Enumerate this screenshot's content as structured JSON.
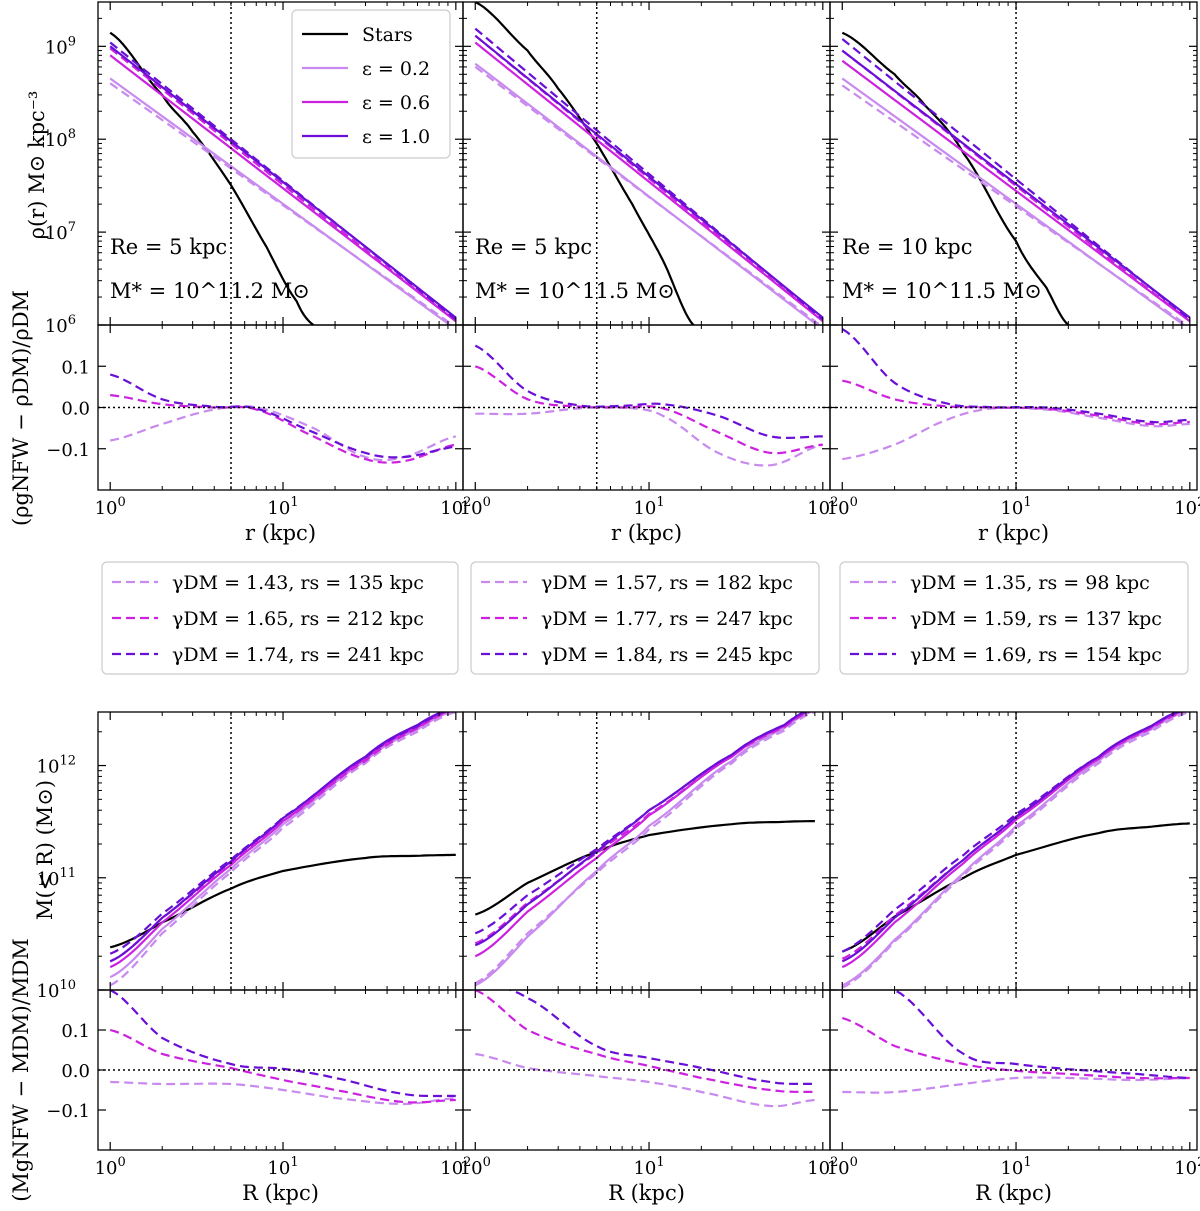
{
  "colors": {
    "stars": "#000000",
    "eps_0_2": "#c88aee",
    "eps_0_6": "#cc22e0",
    "eps_1_0": "#6a0fd6"
  },
  "axis_labels": {
    "density_y": "ρ(r) M⊙ kpc⁻³",
    "density_ratio_y": "(ρgNFW − ρDM)/ρDM",
    "density_x": "r (kpc)",
    "mass_y": "M(< R) (M⊙)",
    "mass_ratio_y": "(MgNFW − MDM)/MDM",
    "mass_x": "R (kpc)"
  },
  "main_legend": [
    {
      "label": "Stars",
      "color_key": "stars"
    },
    {
      "label": "ε = 0.2",
      "color_key": "eps_0_2"
    },
    {
      "label": "ε = 0.6",
      "color_key": "eps_0_6"
    },
    {
      "label": "ε = 1.0",
      "color_key": "eps_1_0"
    }
  ],
  "panels": [
    {
      "re_label": "Re = 5 kpc",
      "mstar_label": "M* = 10^11.2 M⊙",
      "fit_legend": [
        {
          "label": "γDM = 1.43, rs = 135 kpc",
          "color_key": "eps_0_2"
        },
        {
          "label": "γDM = 1.65, rs = 212 kpc",
          "color_key": "eps_0_6"
        },
        {
          "label": "γDM = 1.74, rs = 241 kpc",
          "color_key": "eps_1_0"
        }
      ]
    },
    {
      "re_label": "Re = 5 kpc",
      "mstar_label": "M* = 10^11.5 M⊙",
      "fit_legend": [
        {
          "label": "γDM = 1.57, rs = 182 kpc",
          "color_key": "eps_0_2"
        },
        {
          "label": "γDM = 1.77, rs = 247 kpc",
          "color_key": "eps_0_6"
        },
        {
          "label": "γDM = 1.84, rs = 245 kpc",
          "color_key": "eps_1_0"
        }
      ]
    },
    {
      "re_label": "Re = 10 kpc",
      "mstar_label": "M* = 10^11.5 M⊙",
      "fit_legend": [
        {
          "label": "γDM = 1.35, rs = 98 kpc",
          "color_key": "eps_0_2"
        },
        {
          "label": "γDM = 1.59, rs = 137 kpc",
          "color_key": "eps_0_6"
        },
        {
          "label": "γDM = 1.69, rs = 154 kpc",
          "color_key": "eps_1_0"
        }
      ]
    }
  ],
  "chart_data": [
    {
      "type": "line",
      "name": "density",
      "xscale": "log",
      "yscale": "log",
      "xlim": [
        0.85,
        110
      ],
      "ylim": [
        1000000,
        3000000000
      ],
      "x_ticks": [
        "10^0",
        "10^1",
        "10^2"
      ],
      "y_ticks": [
        "10^6",
        "10^7",
        "10^8",
        "10^9"
      ],
      "vline_x": [
        5,
        5,
        10
      ],
      "panels": [
        {
          "x": [
            1,
            100
          ],
          "stars": {
            "x": [
              1,
              2,
              3,
              5,
              8,
              12,
              15
            ],
            "y": [
              1400000000,
              300000000,
              120000000,
              32000000,
              7000000,
              1800000,
              1000000
            ]
          },
          "solid": {
            "eps_0_2": [
              450000000,
              900000
            ],
            "eps_0_6": [
              800000000,
              1100000
            ],
            "eps_1_0": [
              1000000000,
              1200000
            ]
          },
          "dashed": {
            "eps_0_2": [
              400000000,
              950000
            ],
            "eps_0_6": [
              950000000,
              1100000
            ],
            "eps_1_0": [
              1100000000,
              1150000
            ]
          }
        },
        {
          "x": [
            1,
            100
          ],
          "stars": {
            "x": [
              1,
              2,
              3,
              5,
              8,
              12,
              18
            ],
            "y": [
              3000000000,
              900000000,
              350000000,
              90000000,
              20000000,
              5000000,
              1000000
            ]
          },
          "solid": {
            "eps_0_2": [
              650000000,
              900000
            ],
            "eps_0_6": [
              1100000000,
              1100000
            ],
            "eps_1_0": [
              1300000000,
              1200000
            ]
          },
          "dashed": {
            "eps_0_2": [
              600000000,
              950000
            ],
            "eps_0_6": [
              1300000000,
              1100000
            ],
            "eps_1_0": [
              1550000000,
              1150000
            ]
          }
        },
        {
          "x": [
            1,
            100
          ],
          "stars": {
            "x": [
              1,
              2,
              3,
              5,
              10,
              15,
              20
            ],
            "y": [
              1400000000,
              500000000,
              230000000,
              70000000,
              8000000,
              2500000,
              1000000
            ]
          },
          "solid": {
            "eps_0_2": [
              450000000,
              900000
            ],
            "eps_0_6": [
              700000000,
              1100000
            ],
            "eps_1_0": [
              900000000,
              1200000
            ]
          },
          "dashed": {
            "eps_0_2": [
              380000000,
              950000
            ],
            "eps_0_6": [
              900000000,
              1100000
            ],
            "eps_1_0": [
              1200000000,
              1150000
            ]
          }
        }
      ]
    },
    {
      "type": "line",
      "name": "density_residual",
      "xscale": "log",
      "xlim": [
        0.85,
        110
      ],
      "ylim": [
        -0.2,
        0.2
      ],
      "x_ticks": [
        "10^0",
        "10^1",
        "10^2"
      ],
      "y_ticks": [
        "-0.1",
        "0.0",
        "0.1"
      ],
      "panels": [
        {
          "x": [
            1,
            2,
            4,
            7,
            15,
            30,
            50,
            100
          ],
          "eps_0_2": [
            -0.08,
            -0.04,
            -0.005,
            0,
            -0.05,
            -0.12,
            -0.12,
            -0.07
          ],
          "eps_0_6": [
            0.03,
            0.008,
            0,
            -0.005,
            -0.07,
            -0.125,
            -0.13,
            -0.09
          ],
          "eps_1_0": [
            0.08,
            0.02,
            0.002,
            -0.003,
            -0.06,
            -0.11,
            -0.12,
            -0.095
          ]
        },
        {
          "x": [
            1,
            2,
            4,
            7,
            12,
            25,
            50,
            100
          ],
          "eps_0_2": [
            -0.015,
            -0.015,
            -0.002,
            0,
            -0.02,
            -0.11,
            -0.14,
            -0.09
          ],
          "eps_0_6": [
            0.1,
            0.02,
            0.002,
            0,
            -0.002,
            -0.06,
            -0.11,
            -0.09
          ],
          "eps_1_0": [
            0.15,
            0.04,
            0.005,
            0.004,
            0.008,
            -0.02,
            -0.07,
            -0.07
          ]
        },
        {
          "x": [
            1,
            2,
            4,
            7,
            15,
            30,
            60,
            100
          ],
          "eps_0_2": [
            -0.125,
            -0.09,
            -0.03,
            -0.003,
            -0.005,
            -0.025,
            -0.045,
            -0.04
          ],
          "eps_0_6": [
            0.065,
            0.02,
            0.003,
            0,
            -0.003,
            -0.02,
            -0.04,
            -0.035
          ],
          "eps_1_0": [
            0.19,
            0.06,
            0.01,
            0.001,
            0,
            -0.015,
            -0.035,
            -0.03
          ]
        }
      ]
    },
    {
      "type": "line",
      "name": "enclosed_mass",
      "xscale": "log",
      "yscale": "log",
      "xlim": [
        0.85,
        110
      ],
      "ylim": [
        10000000000,
        3000000000000
      ],
      "x_ticks": [
        "10^0",
        "10^1",
        "10^2"
      ],
      "y_ticks": [
        "10^10",
        "10^11",
        "10^12"
      ],
      "vline_x": [
        5,
        5,
        10
      ],
      "panels": [
        {
          "x": [
            1,
            2,
            5,
            10,
            30,
            60,
            100
          ],
          "stars": [
            24000000000,
            40000000000,
            80000000000,
            115000000000,
            150000000000,
            157000000000,
            160000000000
          ],
          "solid": {
            "eps_0_2": [
              13000000000,
              35000000000,
              120000000000,
              300000000000,
              1100000000000,
              2100000000000,
              3100000000000
            ],
            "eps_0_6": [
              16000000000,
              40000000000,
              130000000000,
              320000000000,
              1150000000000,
              2200000000000,
              3200000000000
            ],
            "eps_1_0": [
              18000000000,
              44000000000,
              140000000000,
              340000000000,
              1200000000000,
              2300000000000,
              3300000000000
            ]
          },
          "dashed": {
            "eps_0_2": [
              11000000000,
              32000000000,
              112000000000,
              280000000000,
              1050000000000,
              2000000000000,
              3000000000000
            ],
            "eps_0_6": [
              18000000000,
              44000000000,
              135000000000,
              320000000000,
              1100000000000,
              2150000000000,
              3150000000000
            ],
            "eps_1_0": [
              21000000000,
              48000000000,
              145000000000,
              345000000000,
              1180000000000,
              2250000000000,
              3250000000000
            ]
          }
        },
        {
          "x": [
            1,
            2,
            5,
            10,
            30,
            60,
            90
          ],
          "stars": [
            47000000000,
            90000000000,
            170000000000,
            240000000000,
            300000000000,
            315000000000,
            320000000000
          ],
          "solid": {
            "eps_0_2": [
              11000000000,
              30000000000,
              115000000000,
              290000000000,
              1100000000000,
              2150000000000,
              3100000000000
            ],
            "eps_0_6": [
              20000000000,
              50000000000,
              150000000000,
              360000000000,
              1200000000000,
              2250000000000,
              3200000000000
            ],
            "eps_1_0": [
              25000000000,
              58000000000,
              170000000000,
              400000000000,
              1250000000000,
              2300000000000,
              3300000000000
            ]
          },
          "dashed": {
            "eps_0_2": [
              11500000000,
              32000000000,
              110000000000,
              270000000000,
              1050000000000,
              2050000000000,
              3000000000000
            ],
            "eps_0_6": [
              26000000000,
              60000000000,
              165000000000,
              370000000000,
              1200000000000,
              2200000000000,
              3150000000000
            ],
            "eps_1_0": [
              32000000000,
              70000000000,
              180000000000,
              400000000000,
              1250000000000,
              2300000000000,
              3250000000000
            ]
          }
        },
        {
          "x": [
            1,
            2,
            5,
            10,
            30,
            60,
            100
          ],
          "stars": [
            22000000000,
            45000000000,
            100000000000,
            160000000000,
            250000000000,
            285000000000,
            305000000000
          ],
          "solid": {
            "eps_0_2": [
              11000000000,
              28000000000,
              110000000000,
              290000000000,
              1100000000000,
              2100000000000,
              3100000000000
            ],
            "eps_0_6": [
              16000000000,
              40000000000,
              135000000000,
              330000000000,
              1150000000000,
              2200000000000,
              3200000000000
            ],
            "eps_1_0": [
              18000000000,
              44000000000,
              145000000000,
              350000000000,
              1200000000000,
              2250000000000,
              3300000000000
            ]
          },
          "dashed": {
            "eps_0_2": [
              10500000000,
              27000000000,
              105000000000,
              275000000000,
              1050000000000,
              2000000000000,
              3000000000000
            ],
            "eps_0_6": [
              19000000000,
              46000000000,
              145000000000,
              345000000000,
              1150000000000,
              2150000000000,
              3150000000000
            ],
            "eps_1_0": [
              22000000000,
              52000000000,
              160000000000,
              370000000000,
              1200000000000,
              2250000000000,
              3250000000000
            ]
          }
        }
      ]
    },
    {
      "type": "line",
      "name": "mass_residual",
      "xscale": "log",
      "xlim": [
        0.85,
        110
      ],
      "ylim": [
        -0.2,
        0.2
      ],
      "x_ticks": [
        "10^0",
        "10^1",
        "10^2"
      ],
      "y_ticks": [
        "-0.1",
        "0.0",
        "0.1"
      ],
      "panels": [
        {
          "x": [
            1,
            2,
            5,
            10,
            20,
            50,
            100
          ],
          "eps_0_2": [
            -0.03,
            -0.035,
            -0.035,
            -0.05,
            -0.07,
            -0.085,
            -0.07
          ],
          "eps_0_6": [
            0.1,
            0.04,
            0.005,
            -0.025,
            -0.05,
            -0.08,
            -0.075
          ],
          "eps_1_0": [
            0.2,
            0.08,
            0.015,
            0.003,
            -0.02,
            -0.06,
            -0.065
          ]
        },
        {
          "x": [
            1,
            2,
            5,
            10,
            20,
            50,
            90
          ],
          "eps_0_2": [
            0.04,
            0.005,
            -0.015,
            -0.03,
            -0.055,
            -0.09,
            -0.075
          ],
          "eps_0_6": [
            0.2,
            0.1,
            0.04,
            0.01,
            -0.02,
            -0.05,
            -0.055
          ],
          "eps_1_0": [
            0.22,
            0.18,
            0.06,
            0.03,
            0.005,
            -0.03,
            -0.035
          ]
        },
        {
          "x": [
            1,
            2,
            5,
            10,
            20,
            50,
            100
          ],
          "eps_0_2": [
            -0.055,
            -0.055,
            -0.035,
            -0.02,
            -0.02,
            -0.025,
            -0.02
          ],
          "eps_0_6": [
            0.13,
            0.06,
            0.015,
            -0.002,
            -0.01,
            -0.02,
            -0.02
          ],
          "eps_1_0": [
            0.2,
            0.2,
            0.04,
            0.015,
            0.002,
            -0.01,
            -0.02
          ]
        }
      ]
    }
  ]
}
